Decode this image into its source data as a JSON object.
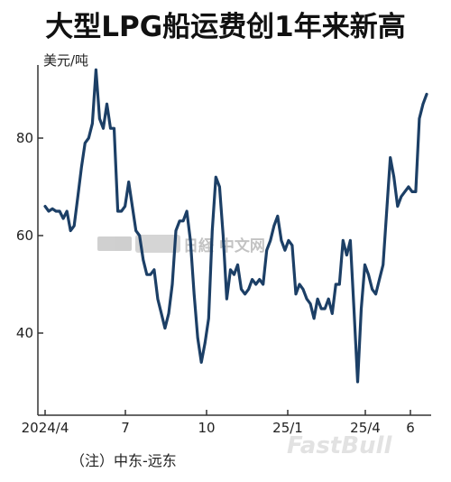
{
  "title": "大型LPG船运费创1年来新高",
  "unit_label": "美元/吨",
  "note": "（注）中东-远东",
  "watermarks": [
    "日経 中文网",
    "FastBull"
  ],
  "colors": {
    "line": "#1c3f66",
    "axis": "#333333",
    "text": "#222222"
  },
  "chart_data": {
    "type": "line",
    "title": "大型LPG船运费创1年来新高",
    "ylabel": "美元/吨",
    "ylim": [
      28,
      95
    ],
    "yticks": [
      40,
      60,
      80
    ],
    "xticks": [
      "2024/4",
      "7",
      "10",
      "25/1",
      "25/4",
      "6"
    ],
    "grid": false,
    "x_start": "2024-04",
    "x_end": "2025-06",
    "series": [
      {
        "values": [
          66,
          65,
          65.5,
          65,
          65,
          63.5,
          65,
          61,
          62,
          68,
          74,
          79,
          80,
          83,
          94,
          84,
          82,
          87,
          82,
          82,
          65,
          65,
          66,
          71,
          66,
          61,
          60,
          55,
          52,
          52,
          53,
          47,
          44,
          41,
          44,
          50,
          61,
          63,
          63,
          65,
          59,
          48,
          39,
          34,
          38,
          43,
          61,
          72,
          70,
          60,
          47,
          53,
          52,
          54,
          49,
          48,
          49,
          51,
          50,
          51,
          50,
          57,
          59,
          62,
          64,
          59,
          57,
          59,
          58,
          48,
          50,
          49,
          47,
          46,
          43,
          47,
          45,
          45,
          47,
          44,
          50,
          50,
          59,
          56,
          59,
          45,
          30,
          45,
          54,
          52,
          49,
          48,
          51,
          54,
          65,
          76,
          72,
          66,
          68,
          69,
          70,
          69,
          69,
          84,
          87,
          89
        ]
      }
    ]
  }
}
